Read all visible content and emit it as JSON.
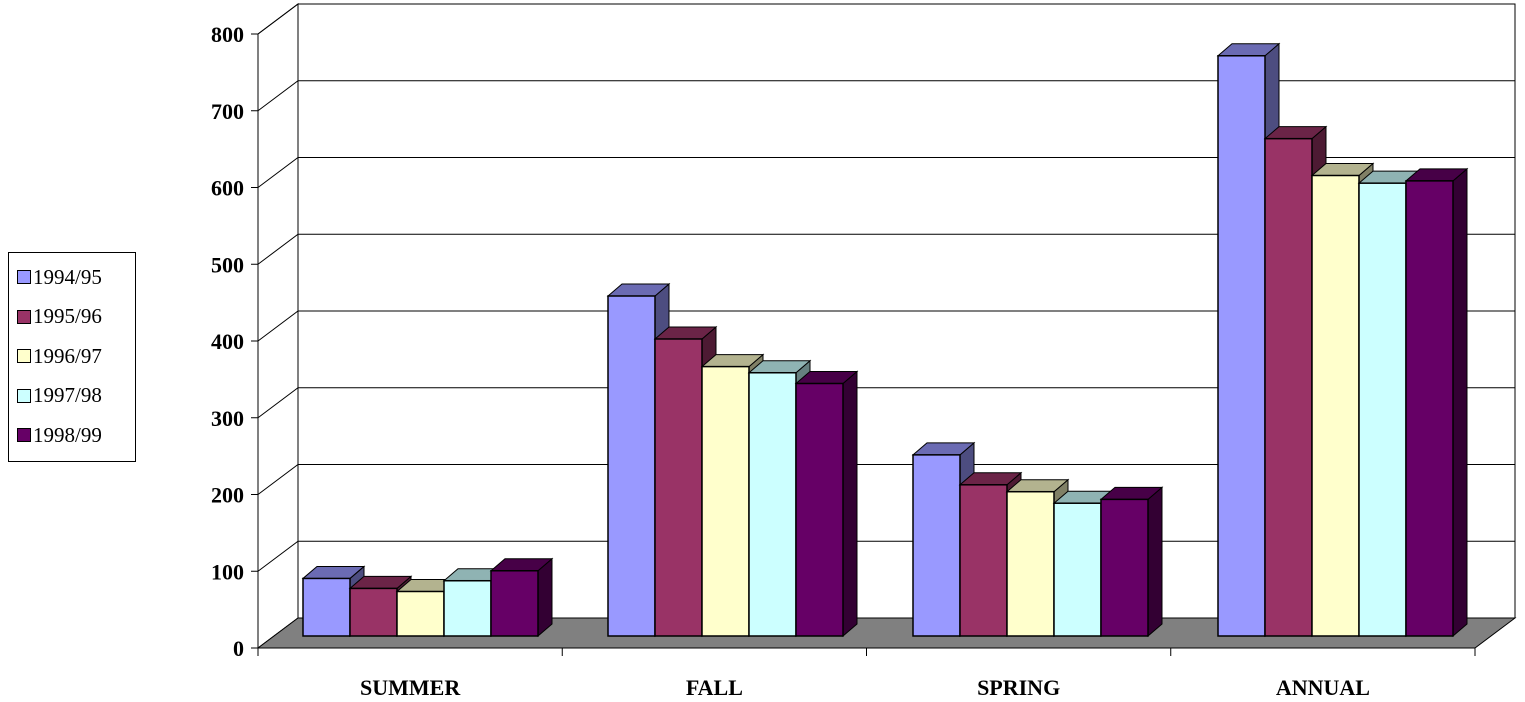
{
  "chart_data": {
    "type": "bar",
    "style": "3d-clustered-column",
    "categories": [
      "SUMMER",
      "FALL",
      "SPRING",
      "ANNUAL"
    ],
    "series": [
      {
        "name": "1994/95",
        "color": "#9999FF",
        "values": [
          75,
          443,
          236,
          756
        ]
      },
      {
        "name": "1995/96",
        "color": "#993366",
        "values": [
          62,
          387,
          197,
          648
        ]
      },
      {
        "name": "1996/97",
        "color": "#FFFFCC",
        "values": [
          58,
          351,
          188,
          600
        ]
      },
      {
        "name": "1997/98",
        "color": "#CCFFFF",
        "values": [
          72,
          343,
          173,
          590
        ]
      },
      {
        "name": "1998/99",
        "color": "#660066",
        "values": [
          85,
          329,
          178,
          593
        ]
      }
    ],
    "yticks": [
      "0",
      "100",
      "200",
      "300",
      "400",
      "500",
      "600",
      "700",
      "800"
    ],
    "ylim": [
      0,
      800
    ],
    "grid": true,
    "floor_color": "#808080",
    "legend_position": "left"
  }
}
